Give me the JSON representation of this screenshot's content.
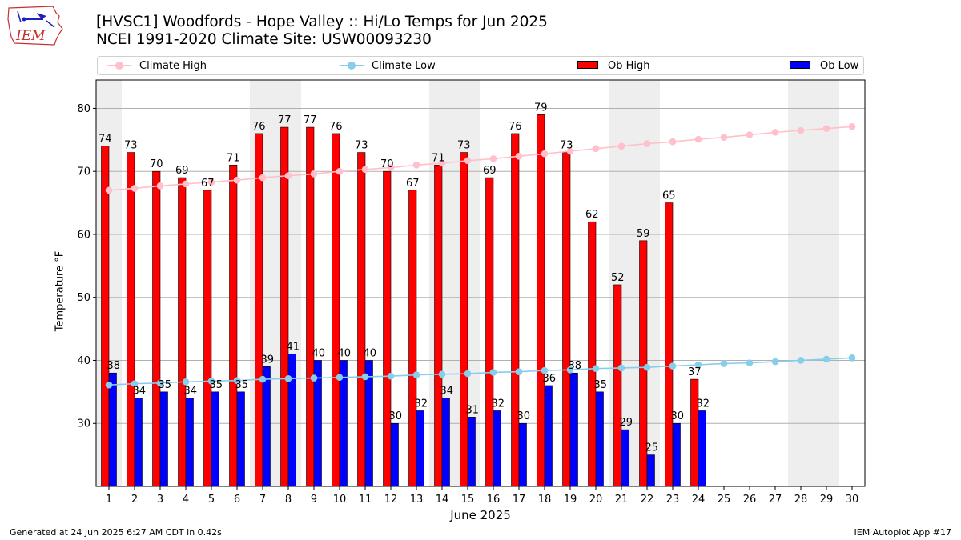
{
  "header": {
    "title_line1": "[HVSC1] Woodfords - Hope Valley :: Hi/Lo Temps for Jun 2025",
    "title_line2": "NCEI 1991-2020 Climate Site: USW00093230",
    "logo_text": "IEM"
  },
  "footer": {
    "generated": "Generated at 24 Jun 2025 6:27 AM CDT in 0.42s",
    "app": "IEM Autoplot App #17"
  },
  "colors": {
    "ob_high": "#ff0000",
    "ob_low": "#0000ff",
    "climate_high": "#ffc0cb",
    "climate_low": "#87ceeb",
    "weekend_shade": "#eeeeee",
    "grid": "#b0b0b0"
  },
  "chart_data": {
    "type": "bar",
    "xlabel": "June 2025",
    "ylabel": "Temperature °F",
    "ylim": [
      20,
      84.5
    ],
    "yticks": [
      30,
      40,
      50,
      60,
      70,
      80
    ],
    "grid": "horizontal",
    "legend_placement": "top",
    "categories": [
      "1",
      "2",
      "3",
      "4",
      "5",
      "6",
      "7",
      "8",
      "9",
      "10",
      "11",
      "12",
      "13",
      "14",
      "15",
      "16",
      "17",
      "18",
      "19",
      "20",
      "21",
      "22",
      "23",
      "24",
      "25",
      "26",
      "27",
      "28",
      "29",
      "30"
    ],
    "shaded_days": [
      1,
      7,
      8,
      14,
      15,
      21,
      22,
      28,
      29
    ],
    "series": [
      {
        "name": "Climate High",
        "kind": "line",
        "values": [
          67.0,
          67.3,
          67.7,
          68.0,
          68.3,
          68.6,
          69.0,
          69.3,
          69.6,
          70.0,
          70.3,
          70.6,
          71.0,
          71.3,
          71.7,
          72.0,
          72.4,
          72.8,
          73.2,
          73.6,
          74.0,
          74.4,
          74.7,
          75.1,
          75.4,
          75.8,
          76.2,
          76.5,
          76.8,
          77.1
        ]
      },
      {
        "name": "Climate Low",
        "kind": "line",
        "values": [
          36.1,
          36.3,
          36.4,
          36.6,
          36.7,
          36.8,
          37.0,
          37.1,
          37.2,
          37.3,
          37.4,
          37.5,
          37.7,
          37.8,
          37.9,
          38.1,
          38.2,
          38.4,
          38.5,
          38.7,
          38.8,
          38.9,
          39.1,
          39.3,
          39.5,
          39.6,
          39.8,
          40.0,
          40.2,
          40.4
        ]
      },
      {
        "name": "Ob High",
        "kind": "bar",
        "values": [
          74,
          73,
          70,
          69,
          67,
          71,
          76,
          77,
          77,
          76,
          73,
          70,
          67,
          71,
          73,
          69,
          76,
          79,
          73,
          62,
          52,
          59,
          65,
          37,
          null,
          null,
          null,
          null,
          null,
          null
        ],
        "labels": [
          "74",
          "73",
          "70",
          "69",
          "67",
          "71",
          "76",
          "77",
          "77",
          "76",
          "73",
          "70",
          "67",
          "71",
          "73",
          "69",
          "76",
          "79",
          "73",
          "62",
          "52",
          "59",
          "65",
          "37",
          "",
          "",
          "",
          "",
          "",
          ""
        ]
      },
      {
        "name": "Ob Low",
        "kind": "bar",
        "values": [
          38,
          34,
          35,
          34,
          35,
          35,
          39,
          41,
          40,
          40,
          40,
          30,
          32,
          34,
          31,
          32,
          30,
          36,
          38,
          35,
          29,
          25,
          30,
          32,
          null,
          null,
          null,
          null,
          null,
          null
        ],
        "labels": [
          "38",
          "34",
          "35",
          "34",
          "35",
          "35",
          "39",
          "41",
          "40",
          "40",
          "40",
          "30",
          "32",
          "34",
          "31",
          "32",
          "30",
          "36",
          "38",
          "35",
          "29",
          "25",
          "30",
          "32",
          "",
          "",
          "",
          "",
          "",
          ""
        ]
      }
    ]
  }
}
